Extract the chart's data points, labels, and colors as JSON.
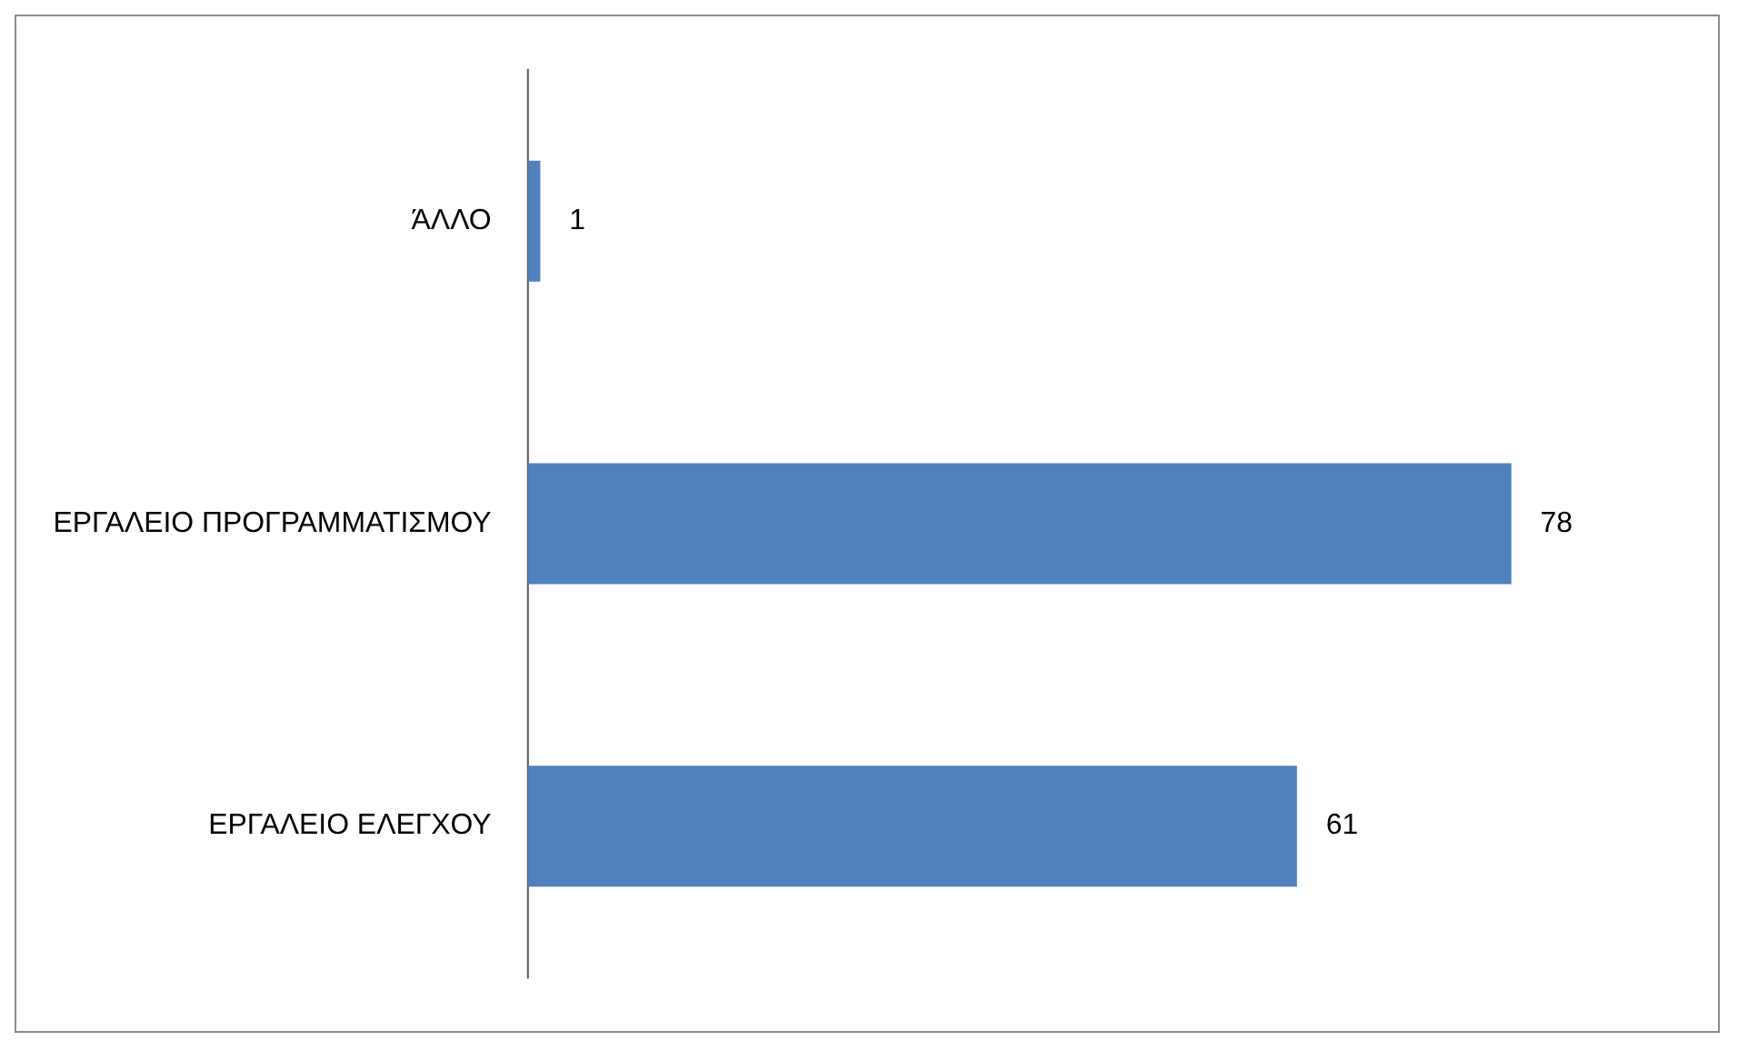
{
  "chart_data": {
    "type": "bar",
    "orientation": "horizontal",
    "categories": [
      "ΆΛΛΟ",
      "ΕΡΓΑΛΕΙΟ ΠΡΟΓΡΑΜΜΑΤΙΣΜΟΥ",
      "ΕΡΓΑΛΕΙΟ ΕΛΕΓΧΟΥ"
    ],
    "values": [
      1,
      78,
      61
    ],
    "color": "#4f81bd",
    "data_labels": true,
    "legend": false,
    "tick_labels": "y"
  }
}
